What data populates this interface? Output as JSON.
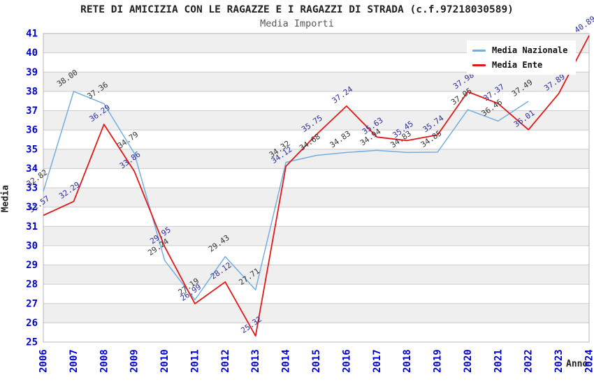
{
  "header": {
    "title": "RETE DI AMICIZIA CON LE RAGAZZE E I RAGAZZI DI STRADA (c.f.97218030589)",
    "subtitle": "Media Importi"
  },
  "chart_data": {
    "type": "line",
    "title": "RETE DI AMICIZIA CON LE RAGAZZE E I RAGAZZI DI STRADA (c.f.97218030589)",
    "subtitle": "Media Importi",
    "xlabel": "Anno",
    "ylabel": "Media",
    "ylim": [
      25,
      41
    ],
    "y_tick_step": 1,
    "grid": true,
    "legend_position": "top-right",
    "x": [
      2006,
      2007,
      2008,
      2009,
      2010,
      2011,
      2012,
      2013,
      2014,
      2015,
      2016,
      2017,
      2018,
      2019,
      2020,
      2021,
      2022,
      2023,
      2024
    ],
    "series": [
      {
        "name": "Media Nazionale",
        "color": "#72aee0",
        "label_color": "#333333",
        "values": [
          32.82,
          38.0,
          37.36,
          34.79,
          29.24,
          27.19,
          29.43,
          27.71,
          34.32,
          34.68,
          34.83,
          34.94,
          34.83,
          34.85,
          37.05,
          36.46,
          37.49,
          null,
          null
        ]
      },
      {
        "name": "Media Ente",
        "color": "#e01818",
        "label_color": "#2d2da0",
        "values": [
          31.57,
          32.29,
          36.29,
          33.86,
          29.95,
          26.99,
          28.12,
          25.32,
          34.12,
          35.75,
          37.24,
          35.63,
          35.45,
          35.74,
          37.98,
          37.37,
          36.01,
          37.89,
          40.89
        ]
      }
    ],
    "colors": {
      "tick_label": "#0000cc",
      "axis_title": "#222222",
      "band": "#efefef",
      "gridline": "#cccccc",
      "plot_border": "#b4b4b4"
    }
  }
}
